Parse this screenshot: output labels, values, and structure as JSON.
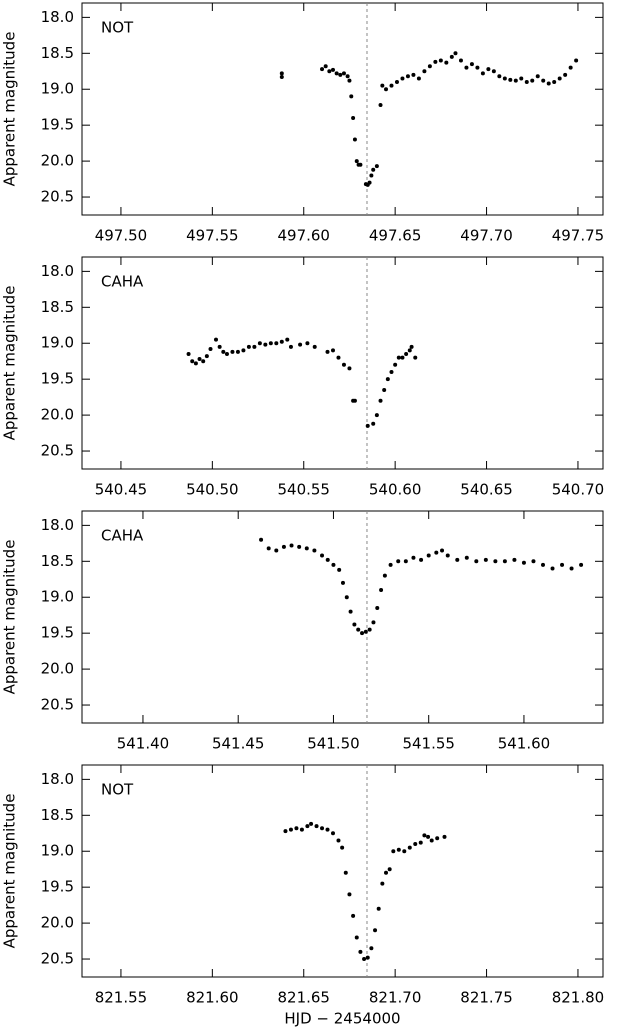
{
  "chart_data": [
    {
      "type": "scatter",
      "label": "NOT",
      "ylabel": "Apparent magnitude",
      "color": "#000000",
      "xlim": [
        497.4787,
        497.7637
      ],
      "ylim": [
        20.75,
        17.8
      ],
      "vline": 497.6346,
      "xticks": [
        {
          "value": 497.5,
          "label": "497.50"
        },
        497.55,
        {
          "value": 497.6,
          "label": "497.60"
        },
        497.65,
        {
          "value": 497.7,
          "label": "497.70"
        },
        497.75
      ],
      "yticks": [
        {
          "value": 18,
          "label": "18.0"
        },
        18.5,
        {
          "value": 19,
          "label": "19.0"
        },
        19.5,
        {
          "value": 20,
          "label": "20.0"
        },
        20.5
      ],
      "x": [
        497.588,
        497.588,
        497.61,
        497.612,
        497.614,
        497.616,
        497.618,
        497.62,
        497.622,
        497.624,
        497.625,
        497.626,
        497.627,
        497.628,
        497.629,
        497.63,
        497.631,
        497.634,
        497.635,
        497.636,
        497.637,
        497.638,
        497.64,
        497.642,
        497.643,
        497.645,
        497.648,
        497.651,
        497.654,
        497.657,
        497.66,
        497.663,
        497.666,
        497.669,
        497.672,
        497.675,
        497.678,
        497.681,
        497.683,
        497.686,
        497.689,
        497.692,
        497.695,
        497.698,
        497.701,
        497.704,
        497.707,
        497.71,
        497.713,
        497.716,
        497.719,
        497.722,
        497.725,
        497.728,
        497.731,
        497.734,
        497.737,
        497.74,
        497.743,
        497.746,
        497.749
      ],
      "values": [
        18.78,
        18.83,
        18.72,
        18.68,
        18.75,
        18.73,
        18.78,
        18.8,
        18.78,
        18.82,
        18.88,
        19.1,
        19.4,
        19.7,
        20.0,
        20.05,
        20.05,
        20.32,
        20.33,
        20.3,
        20.2,
        20.12,
        20.07,
        19.22,
        18.95,
        19.0,
        18.95,
        18.9,
        18.85,
        18.82,
        18.8,
        18.85,
        18.75,
        18.68,
        18.62,
        18.6,
        18.63,
        18.55,
        18.5,
        18.6,
        18.7,
        18.65,
        18.7,
        18.78,
        18.72,
        18.75,
        18.82,
        18.85,
        18.87,
        18.88,
        18.85,
        18.9,
        18.88,
        18.82,
        18.88,
        18.92,
        18.9,
        18.85,
        18.8,
        18.7,
        18.6
      ]
    },
    {
      "type": "scatter",
      "label": "CAHA",
      "ylabel": "Apparent magnitude",
      "color": "#000000",
      "xlim": [
        540.4287,
        540.7137
      ],
      "ylim": [
        20.75,
        17.8
      ],
      "vline": 540.5846,
      "xticks": [
        540.45,
        {
          "value": 540.5,
          "label": "540.50"
        },
        540.55,
        {
          "value": 540.6,
          "label": "540.60"
        },
        540.65,
        {
          "value": 540.7,
          "label": "540.70"
        }
      ],
      "yticks": [
        {
          "value": 18,
          "label": "18.0"
        },
        18.5,
        {
          "value": 19,
          "label": "19.0"
        },
        19.5,
        {
          "value": 20,
          "label": "20.0"
        },
        20.5
      ],
      "x": [
        540.487,
        540.489,
        540.491,
        540.493,
        540.495,
        540.497,
        540.499,
        540.502,
        540.504,
        540.506,
        540.508,
        540.511,
        540.514,
        540.517,
        540.52,
        540.523,
        540.526,
        540.529,
        540.532,
        540.535,
        540.538,
        540.541,
        540.543,
        540.548,
        540.552,
        540.556,
        540.563,
        540.566,
        540.569,
        540.572,
        540.575,
        540.577,
        540.578,
        540.585,
        540.588,
        540.59,
        540.592,
        540.594,
        540.596,
        540.598,
        540.6,
        540.602,
        540.604,
        540.606,
        540.608,
        540.609,
        540.611
      ],
      "values": [
        19.15,
        19.25,
        19.28,
        19.22,
        19.25,
        19.18,
        19.08,
        18.95,
        19.05,
        19.12,
        19.15,
        19.12,
        19.12,
        19.1,
        19.05,
        19.05,
        19.0,
        19.02,
        19.0,
        19.0,
        18.98,
        18.95,
        19.05,
        19.02,
        19.0,
        19.05,
        19.12,
        19.1,
        19.2,
        19.3,
        19.35,
        19.8,
        19.8,
        20.15,
        20.12,
        20.0,
        19.8,
        19.65,
        19.5,
        19.4,
        19.3,
        19.2,
        19.2,
        19.15,
        19.1,
        19.05,
        19.2
      ]
    },
    {
      "type": "scatter",
      "label": "CAHA",
      "ylabel": "Apparent magnitude",
      "color": "#000000",
      "xlim": [
        541.368,
        541.6415
      ],
      "ylim": [
        20.75,
        17.8
      ],
      "vline": 541.5176,
      "xticks": [
        {
          "value": 541.4,
          "label": "541.40"
        },
        541.45,
        {
          "value": 541.5,
          "label": "541.50"
        },
        541.55,
        {
          "value": 541.6,
          "label": "541.60"
        }
      ],
      "yticks": [
        {
          "value": 18,
          "label": "18.0"
        },
        18.5,
        {
          "value": 19,
          "label": "19.0"
        },
        19.5,
        {
          "value": 20,
          "label": "20.0"
        },
        20.5
      ],
      "x": [
        541.462,
        541.466,
        541.47,
        541.474,
        541.478,
        541.482,
        541.486,
        541.49,
        541.494,
        541.497,
        541.5,
        541.503,
        541.505,
        541.507,
        541.509,
        541.511,
        541.513,
        541.515,
        541.517,
        541.519,
        541.521,
        541.523,
        541.525,
        541.527,
        541.53,
        541.534,
        541.538,
        541.542,
        541.546,
        541.55,
        541.554,
        541.557,
        541.56,
        541.565,
        541.57,
        541.575,
        541.58,
        541.585,
        541.59,
        541.595,
        541.6,
        541.605,
        541.61,
        541.615,
        541.62,
        541.625,
        541.63
      ],
      "values": [
        18.2,
        18.32,
        18.35,
        18.3,
        18.28,
        18.3,
        18.32,
        18.35,
        18.42,
        18.48,
        18.55,
        18.62,
        18.8,
        19.0,
        19.2,
        19.38,
        19.45,
        19.5,
        19.48,
        19.45,
        19.35,
        19.15,
        18.9,
        18.7,
        18.55,
        18.5,
        18.5,
        18.45,
        18.48,
        18.42,
        18.38,
        18.35,
        18.42,
        18.48,
        18.45,
        18.5,
        18.48,
        18.5,
        18.5,
        18.48,
        18.52,
        18.5,
        18.55,
        18.6,
        18.55,
        18.6,
        18.55
      ]
    },
    {
      "type": "scatter",
      "label": "NOT",
      "ylabel": "Apparent magnitude",
      "xlabel": "HJD − 2454000",
      "color": "#000000",
      "xlim": [
        821.5287,
        821.8137
      ],
      "ylim": [
        20.75,
        17.8
      ],
      "vline": 821.6846,
      "xticks": [
        821.55,
        {
          "value": 821.6,
          "label": "821.60"
        },
        821.65,
        {
          "value": 821.7,
          "label": "821.70"
        },
        821.75,
        {
          "value": 821.8,
          "label": "821.80"
        }
      ],
      "yticks": [
        {
          "value": 18,
          "label": "18.0"
        },
        18.5,
        {
          "value": 19,
          "label": "19.0"
        },
        19.5,
        {
          "value": 20,
          "label": "20.0"
        },
        20.5
      ],
      "x": [
        821.64,
        821.643,
        821.646,
        821.649,
        821.652,
        821.654,
        821.657,
        821.66,
        821.663,
        821.666,
        821.669,
        821.671,
        821.673,
        821.675,
        821.677,
        821.679,
        821.681,
        821.683,
        821.685,
        821.687,
        821.689,
        821.691,
        821.693,
        821.695,
        821.697,
        821.699,
        821.702,
        821.705,
        821.708,
        821.711,
        821.714,
        821.716,
        821.718,
        821.72,
        821.723,
        821.727
      ],
      "values": [
        18.72,
        18.7,
        18.68,
        18.7,
        18.65,
        18.62,
        18.65,
        18.68,
        18.7,
        18.75,
        18.85,
        18.95,
        19.3,
        19.6,
        19.9,
        20.2,
        20.4,
        20.5,
        20.48,
        20.35,
        20.1,
        19.8,
        19.45,
        19.3,
        19.25,
        19.0,
        18.98,
        19.0,
        18.95,
        18.9,
        18.88,
        18.78,
        18.8,
        18.85,
        18.82,
        18.8
      ]
    }
  ]
}
